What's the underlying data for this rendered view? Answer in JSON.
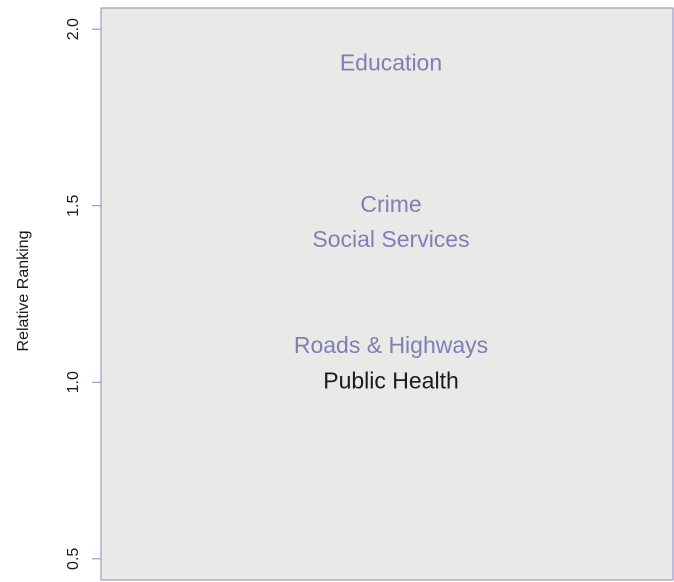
{
  "chart_data": {
    "type": "text",
    "ylabel": "Relative Ranking",
    "categories": [
      "Education",
      "Crime",
      "Social Services",
      "Roads & Highways",
      "Public Health"
    ],
    "values": [
      1.9,
      1.5,
      1.4,
      1.1,
      1.0
    ],
    "colors": [
      "#7f7fb6",
      "#7f7fb6",
      "#7f7fb6",
      "#7f7fb6",
      "#1a1a1a"
    ],
    "ylim": [
      0.44,
      2.06
    ],
    "yticks": [
      0.5,
      {
        "value": 1,
        "label": "1.0"
      },
      1.5,
      {
        "value": 2,
        "label": "2.0"
      }
    ],
    "background": "#e9e9e7"
  }
}
